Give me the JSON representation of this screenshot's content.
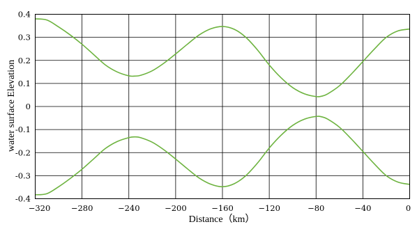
{
  "chart_data": {
    "type": "line",
    "xlabel": "Distance（km）",
    "ylabel": "water surface Elevation",
    "xlim": [
      -320,
      0
    ],
    "ylim": [
      -0.4,
      0.4
    ],
    "x_ticks": [
      -320,
      -280,
      -240,
      -200,
      -160,
      -120,
      -80,
      -40,
      0
    ],
    "x_tick_labels": [
      "−320",
      "−280",
      "−240",
      "−200",
      "−160",
      "−120",
      "−80",
      "−40",
      "0"
    ],
    "y_ticks": [
      0.4,
      0.3,
      0.2,
      0.1,
      0,
      -0.1,
      -0.2,
      -0.3,
      -0.4
    ],
    "y_tick_labels": [
      "0.4",
      "0.3",
      "0.2",
      "0.1",
      "0",
      "-0.1",
      "-0.2",
      "-0.3",
      "-0.4"
    ],
    "grid": true,
    "line_color": "#6db33f",
    "series": [
      {
        "x": [
          -320,
          -310,
          -300,
          -290,
          -280,
          -270,
          -260,
          -250,
          -240,
          -235,
          -230,
          -220,
          -210,
          -200,
          -190,
          -180,
          -170,
          -160,
          -150,
          -140,
          -130,
          -120,
          -110,
          -100,
          -90,
          -80,
          -75,
          -70,
          -60,
          -50,
          -40,
          -30,
          -20,
          -10,
          0
        ],
        "y": [
          0.38,
          0.375,
          0.345,
          0.31,
          0.27,
          0.225,
          0.18,
          0.15,
          0.133,
          0.132,
          0.135,
          0.155,
          0.188,
          0.228,
          0.27,
          0.31,
          0.337,
          0.347,
          0.335,
          0.3,
          0.245,
          0.18,
          0.125,
          0.082,
          0.055,
          0.043,
          0.045,
          0.055,
          0.09,
          0.14,
          0.195,
          0.25,
          0.3,
          0.328,
          0.336
        ]
      },
      {
        "x": [
          -320,
          -310,
          -300,
          -290,
          -280,
          -270,
          -260,
          -250,
          -240,
          -235,
          -230,
          -220,
          -210,
          -200,
          -190,
          -180,
          -170,
          -160,
          -150,
          -140,
          -130,
          -120,
          -110,
          -100,
          -90,
          -80,
          -75,
          -70,
          -60,
          -50,
          -40,
          -30,
          -20,
          -10,
          0
        ],
        "y": [
          -0.383,
          -0.378,
          -0.348,
          -0.312,
          -0.272,
          -0.227,
          -0.182,
          -0.152,
          -0.135,
          -0.132,
          -0.135,
          -0.155,
          -0.188,
          -0.228,
          -0.27,
          -0.31,
          -0.337,
          -0.348,
          -0.335,
          -0.3,
          -0.245,
          -0.18,
          -0.125,
          -0.082,
          -0.055,
          -0.043,
          -0.045,
          -0.055,
          -0.09,
          -0.14,
          -0.195,
          -0.25,
          -0.3,
          -0.328,
          -0.338
        ]
      }
    ]
  }
}
